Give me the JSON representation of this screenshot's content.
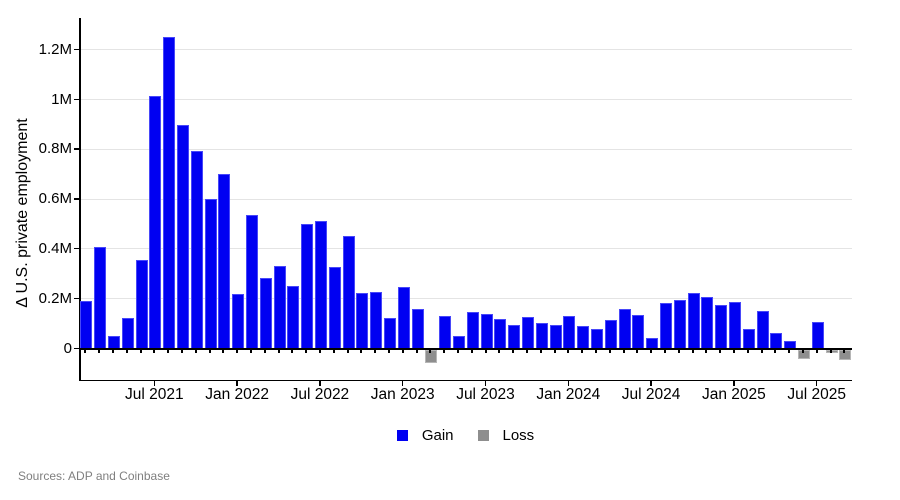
{
  "figure": {
    "sources_note": "Sources: ADP and Coinbase"
  },
  "legend": {
    "position": "bottom-center",
    "items": [
      {
        "key": "gain",
        "label": "Gain"
      },
      {
        "key": "loss",
        "label": "Loss"
      }
    ]
  },
  "chart_data": {
    "type": "bar",
    "title": "",
    "xlabel": "",
    "ylabel": "Δ U.S. private employment",
    "unit": "thousands of jobs (monthly change)",
    "grid": true,
    "legend_position": "bottom-center",
    "colors": {
      "gain": "#0000f2",
      "loss": "#8e8e8e",
      "grid": "#e4e4e4",
      "axis": "#000000",
      "sources_text": "#7f7f7f"
    },
    "y_axis": {
      "tick_labels": [
        "0",
        "0.2M",
        "0.4M",
        "0.6M",
        "0.8M",
        "1M",
        "1.2M"
      ],
      "tick_values_thousands": [
        0,
        200,
        400,
        600,
        800,
        1000,
        1200
      ],
      "range_thousands": [
        -90,
        1330
      ]
    },
    "x_axis": {
      "tick_labels": [
        "Jul 2021",
        "Jan 2022",
        "Jul 2022",
        "Jan 2023",
        "Jul 2023",
        "Jan 2024",
        "Jul 2024",
        "Jan 2025",
        "Jul 2025"
      ]
    },
    "categories": [
      "Feb 2021",
      "Mar 2021",
      "Apr 2021",
      "May 2021",
      "Jun 2021",
      "Jul 2021",
      "Aug 2021",
      "Sep 2021",
      "Oct 2021",
      "Nov 2021",
      "Dec 2021",
      "Jan 2022",
      "Feb 2022",
      "Mar 2022",
      "Apr 2022",
      "May 2022",
      "Jun 2022",
      "Jul 2022",
      "Aug 2022",
      "Sep 2022",
      "Oct 2022",
      "Nov 2022",
      "Dec 2022",
      "Jan 2023",
      "Feb 2023",
      "Mar 2023",
      "Apr 2023",
      "May 2023",
      "Jun 2023",
      "Jul 2023",
      "Aug 2023",
      "Sep 2023",
      "Oct 2023",
      "Nov 2023",
      "Dec 2023",
      "Jan 2024",
      "Feb 2024",
      "Mar 2024",
      "Apr 2024",
      "May 2024",
      "Jun 2024",
      "Jul 2024",
      "Aug 2024",
      "Sep 2024",
      "Oct 2024",
      "Nov 2024",
      "Dec 2024",
      "Jan 2025",
      "Feb 2025",
      "Mar 2025",
      "Apr 2025",
      "May 2025",
      "Jun 2025",
      "Jul 2025",
      "Aug 2025",
      "Sep 2025"
    ],
    "values_thousands": [
      190,
      405,
      50,
      122,
      352,
      1013,
      1247,
      895,
      792,
      598,
      697,
      216,
      536,
      280,
      328,
      248,
      500,
      511,
      324,
      448,
      219,
      223,
      122,
      245,
      155,
      -47,
      129,
      49,
      144,
      136,
      115,
      92,
      125,
      100,
      94,
      127,
      88,
      76,
      111,
      158,
      132,
      40,
      180,
      193,
      222,
      203,
      173,
      185,
      78,
      147,
      60,
      29,
      -31,
      104,
      -5,
      -33
    ]
  }
}
